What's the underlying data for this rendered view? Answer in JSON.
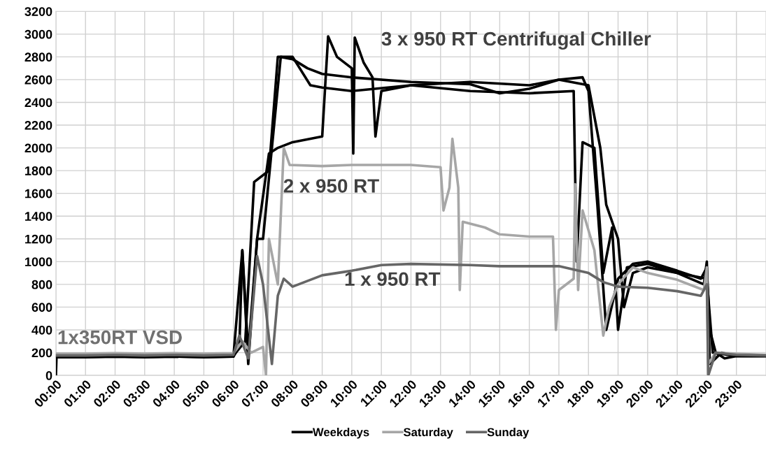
{
  "chart_data": {
    "type": "line",
    "xlim": [
      0,
      24
    ],
    "xticks": [
      {
        "value": 0,
        "label": "00:00"
      },
      {
        "value": 1,
        "label": "01:00"
      },
      {
        "value": 2,
        "label": "02:00"
      },
      {
        "value": 3,
        "label": "03:00"
      },
      {
        "value": 4,
        "label": "04:00"
      },
      {
        "value": 5,
        "label": "05:00"
      },
      {
        "value": 6,
        "label": "06:00"
      },
      {
        "value": 7,
        "label": "07:00"
      },
      {
        "value": 8,
        "label": "08:00"
      },
      {
        "value": 9,
        "label": "09:00"
      },
      {
        "value": 10,
        "label": "10:00"
      },
      {
        "value": 11,
        "label": "11:00"
      },
      {
        "value": 12,
        "label": "12:00"
      },
      {
        "value": 13,
        "label": "13:00"
      },
      {
        "value": 14,
        "label": "14:00"
      },
      {
        "value": 15,
        "label": "15:00"
      },
      {
        "value": 16,
        "label": "16:00"
      },
      {
        "value": 17,
        "label": "17:00"
      },
      {
        "value": 18,
        "label": "18:00"
      },
      {
        "value": 19,
        "label": "19:00"
      },
      {
        "value": 20,
        "label": "20:00"
      },
      {
        "value": 21,
        "label": "21:00"
      },
      {
        "value": 22,
        "label": "22:00"
      },
      {
        "value": 23,
        "label": "23:00"
      }
    ],
    "ylim": [
      0,
      3200
    ],
    "yticks": [
      0,
      200,
      400,
      600,
      800,
      1000,
      1200,
      1400,
      1600,
      1800,
      2000,
      2200,
      2400,
      2600,
      2800,
      3000,
      3200
    ],
    "grid": true,
    "legend": "bottom",
    "line_style": "solid",
    "marker": "none",
    "series": [
      {
        "name": "Saturday",
        "color": "#a6a6a6",
        "x": [
          0,
          1,
          2,
          3,
          4,
          5,
          6,
          6.3,
          6.6,
          7,
          7.1,
          7.2,
          7.5,
          7.7,
          7.9,
          9,
          10,
          11,
          12,
          13,
          13.1,
          13.3,
          13.4,
          13.6,
          13.65,
          13.75,
          14.5,
          15,
          16,
          16.8,
          16.9,
          17,
          17.5,
          17.55,
          17.65,
          17.8,
          18.2,
          18.5,
          18.7,
          19,
          19.5,
          20,
          21,
          21.9,
          22,
          22.05,
          22.3,
          23,
          24
        ],
        "values": [
          190,
          190,
          195,
          190,
          195,
          190,
          195,
          300,
          200,
          250,
          0,
          1200,
          800,
          2000,
          1850,
          1840,
          1850,
          1850,
          1850,
          1830,
          1450,
          1650,
          2080,
          1650,
          750,
          1350,
          1300,
          1240,
          1220,
          1220,
          400,
          750,
          850,
          1680,
          750,
          1450,
          1100,
          350,
          600,
          800,
          950,
          900,
          840,
          750,
          950,
          100,
          200,
          190,
          180
        ]
      },
      {
        "name": "Sunday",
        "color": "#666666",
        "x": [
          0,
          1,
          2,
          3,
          4,
          5,
          6,
          6.2,
          6.5,
          6.8,
          7,
          7.3,
          7.5,
          7.7,
          8,
          9,
          10,
          11,
          12,
          14,
          15,
          17,
          18,
          18.5,
          19,
          20,
          21,
          21.8,
          22,
          22.05,
          22.3,
          23,
          24
        ],
        "values": [
          175,
          175,
          180,
          175,
          180,
          175,
          180,
          350,
          150,
          1050,
          800,
          100,
          700,
          850,
          780,
          880,
          920,
          970,
          980,
          970,
          960,
          960,
          900,
          820,
          780,
          770,
          740,
          700,
          800,
          0,
          200,
          180,
          175
        ]
      },
      {
        "name": "Weekdays",
        "color": "#000000",
        "x": [
          0,
          0.02,
          1,
          2,
          3,
          4,
          5,
          6,
          6.2,
          6.3,
          6.5,
          6.8,
          7,
          7.3,
          7.6,
          8,
          8.5,
          9,
          10,
          12,
          14,
          15,
          16,
          17,
          17.8,
          18,
          18.3,
          18.6,
          19,
          19.5,
          20,
          21,
          21.8,
          22,
          22.1,
          22.3,
          22.6,
          23,
          24
        ],
        "values": [
          0,
          160,
          160,
          165,
          160,
          165,
          160,
          165,
          250,
          1100,
          200,
          1200,
          1200,
          2000,
          2800,
          2780,
          2700,
          2650,
          2620,
          2580,
          2560,
          2480,
          2520,
          2600,
          2620,
          2500,
          1500,
          400,
          850,
          980,
          1000,
          920,
          850,
          950,
          400,
          200,
          150,
          170,
          170
        ]
      },
      {
        "color": "#000000",
        "x": [
          0,
          1,
          2,
          3,
          4,
          5,
          6,
          6.3,
          6.5,
          6.8,
          7.2,
          7.5,
          8,
          9,
          9.2,
          9.5,
          10,
          10.05,
          10.1,
          10.4,
          10.7,
          10.8,
          11,
          12,
          14,
          16,
          17.5,
          17.6,
          17.8,
          18.2,
          18.5,
          18.8,
          19,
          19.3,
          20,
          21,
          21.9,
          22,
          22.1,
          22.5,
          23,
          24
        ],
        "values": [
          160,
          160,
          165,
          160,
          165,
          160,
          165,
          1100,
          100,
          1200,
          1950,
          2000,
          2050,
          2100,
          2980,
          2800,
          2700,
          1950,
          2970,
          2750,
          2620,
          2100,
          2500,
          2550,
          2500,
          2480,
          2500,
          1000,
          2050,
          2000,
          900,
          1300,
          400,
          950,
          980,
          900,
          800,
          1000,
          100,
          200,
          170,
          170
        ]
      },
      {
        "color": "#000000",
        "x": [
          0,
          1,
          2,
          3,
          4,
          5,
          6,
          6.4,
          6.7,
          7.2,
          7.5,
          8,
          8.6,
          9,
          10,
          12,
          14,
          16,
          17,
          18,
          18.4,
          18.6,
          19,
          19.2,
          19.5,
          20,
          21,
          22,
          22.2,
          23,
          24
        ],
        "values": [
          180,
          180,
          175,
          180,
          175,
          180,
          175,
          300,
          1700,
          1800,
          2800,
          2800,
          2550,
          2530,
          2500,
          2550,
          2580,
          2550,
          2600,
          2550,
          2000,
          1500,
          1200,
          600,
          900,
          950,
          900,
          850,
          200,
          170,
          170
        ]
      }
    ],
    "annotations": [
      "3 x 950 RT Centrifugal Chiller",
      "2 x 950 RT",
      "1 x 950 RT",
      "1x350RT VSD"
    ]
  }
}
